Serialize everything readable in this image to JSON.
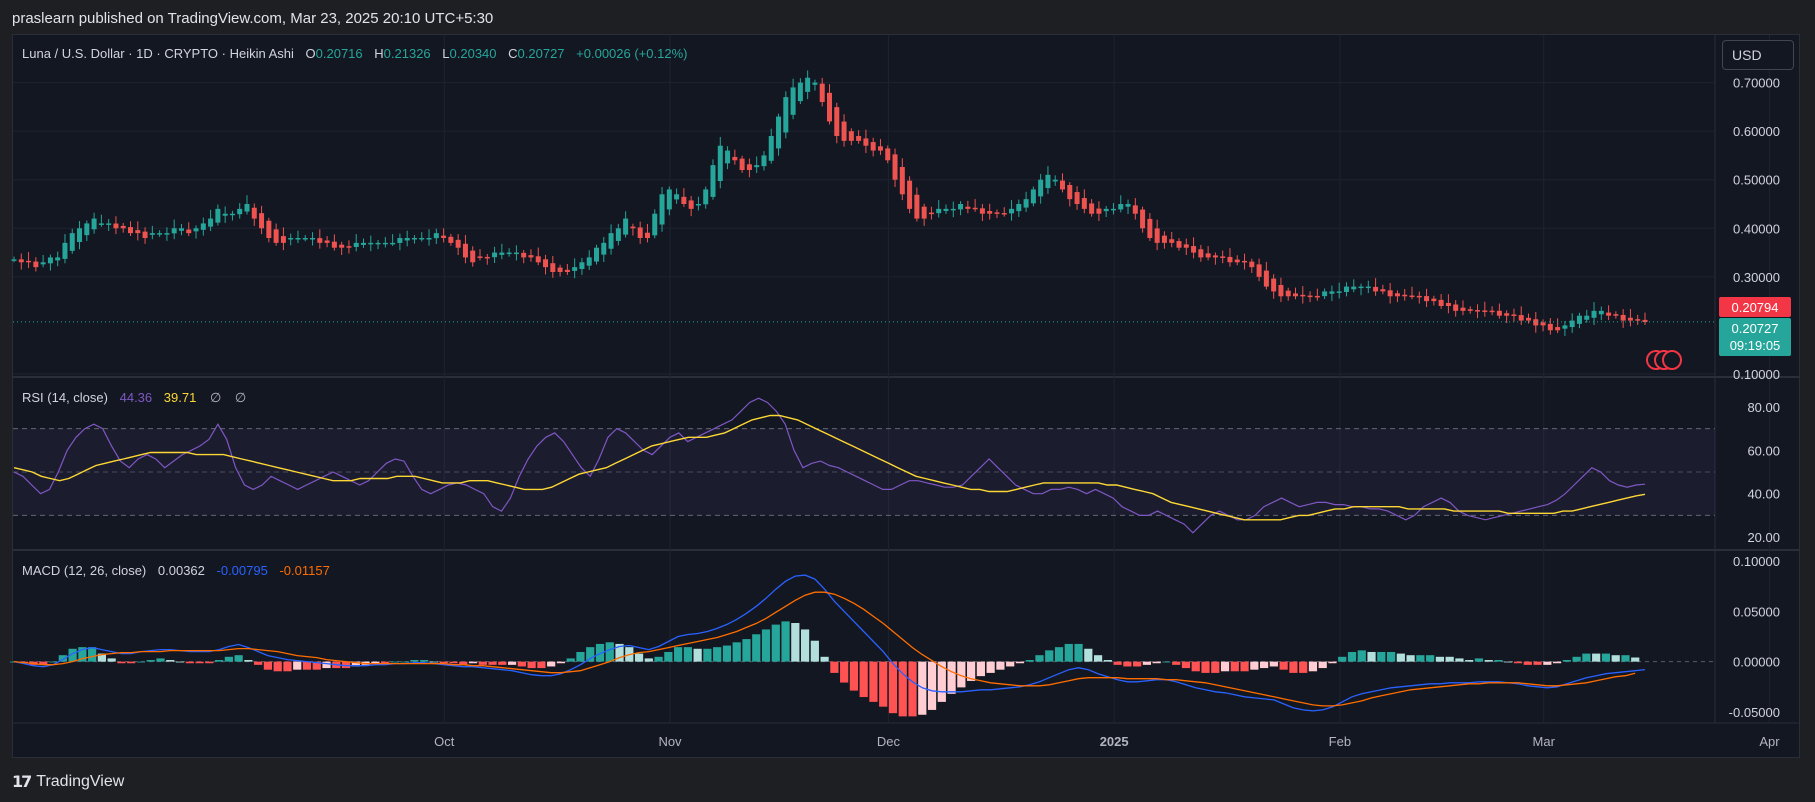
{
  "publisher": {
    "text": "praslearn published on TradingView.com, Mar 23, 2025 20:10 UTC+5:30"
  },
  "branding": {
    "logo_mark": "17",
    "name": "TradingView"
  },
  "symbol": {
    "title": "Luna / U.S. Dollar · 1D · CRYPTO · Heikin Ashi",
    "o_label": "O",
    "o": "0.20716",
    "h_label": "H",
    "h": "0.21326",
    "l_label": "L",
    "l": "0.20340",
    "c_label": "C",
    "c": "0.20727",
    "change": "+0.00026 (+0.12%)"
  },
  "currency_button": "USD",
  "colors": {
    "background": "#131722",
    "up": "#26a69a",
    "down": "#ef5350",
    "rsi": "#7e57c2",
    "rsi_ma": "#fdd835",
    "macd": "#2962ff",
    "signal": "#ff6d00",
    "hist_up_strong": "#26a69a",
    "hist_up_weak": "#b2dfdb",
    "hist_down_strong": "#ff5252",
    "hist_down_weak": "#ffcdd2"
  },
  "chart_data": [
    {
      "type": "candlestick",
      "style": "Heikin Ashi",
      "x_axis": {
        "labels": [
          "Oct",
          "Nov",
          "Dec",
          "2025",
          "Feb",
          "Mar",
          "Apr"
        ],
        "label_days": [
          33,
          64,
          94,
          125,
          156,
          184,
          215
        ]
      },
      "y_axis": {
        "labels": [
          "0.70000",
          "0.60000",
          "0.50000",
          "0.40000",
          "0.30000",
          "0.10000"
        ],
        "range": [
          0.1,
          0.73
        ]
      },
      "price_labels": [
        {
          "value": 0.20794,
          "text": "0.20794",
          "color": "#f23645"
        },
        {
          "value": 0.20727,
          "text": "0.20727",
          "sub": "09:19:05",
          "color": "#26a69a"
        }
      ],
      "grid": true,
      "close_values": [
        0.336,
        0.33,
        0.33,
        0.32,
        0.33,
        0.34,
        0.34,
        0.37,
        0.39,
        0.4,
        0.41,
        0.42,
        0.41,
        0.41,
        0.4,
        0.4,
        0.39,
        0.39,
        0.38,
        0.39,
        0.39,
        0.39,
        0.4,
        0.4,
        0.39,
        0.4,
        0.41,
        0.42,
        0.44,
        0.43,
        0.43,
        0.44,
        0.45,
        0.42,
        0.4,
        0.38,
        0.37,
        0.37,
        0.38,
        0.38,
        0.38,
        0.38,
        0.37,
        0.37,
        0.36,
        0.36,
        0.36,
        0.37,
        0.37,
        0.37,
        0.37,
        0.37,
        0.37,
        0.38,
        0.38,
        0.38,
        0.38,
        0.38,
        0.39,
        0.38,
        0.37,
        0.36,
        0.34,
        0.33,
        0.34,
        0.34,
        0.35,
        0.35,
        0.35,
        0.35,
        0.34,
        0.34,
        0.33,
        0.32,
        0.31,
        0.31,
        0.31,
        0.32,
        0.33,
        0.34,
        0.36,
        0.37,
        0.39,
        0.4,
        0.42,
        0.4,
        0.38,
        0.38,
        0.43,
        0.47,
        0.48,
        0.47,
        0.45,
        0.44,
        0.45,
        0.48,
        0.53,
        0.57,
        0.56,
        0.54,
        0.52,
        0.52,
        0.53,
        0.55,
        0.59,
        0.63,
        0.67,
        0.69,
        0.7,
        0.71,
        0.7,
        0.66,
        0.62,
        0.59,
        0.58,
        0.58,
        0.58,
        0.57,
        0.56,
        0.56,
        0.54,
        0.5,
        0.47,
        0.44,
        0.42,
        0.42,
        0.43,
        0.44,
        0.44,
        0.44,
        0.45,
        0.44,
        0.44,
        0.43,
        0.43,
        0.43,
        0.43,
        0.44,
        0.45,
        0.46,
        0.48,
        0.5,
        0.51,
        0.5,
        0.48,
        0.46,
        0.45,
        0.44,
        0.43,
        0.43,
        0.44,
        0.44,
        0.45,
        0.45,
        0.43,
        0.4,
        0.38,
        0.37,
        0.37,
        0.37,
        0.36,
        0.36,
        0.35,
        0.34,
        0.34,
        0.34,
        0.34,
        0.33,
        0.33,
        0.33,
        0.32,
        0.3,
        0.28,
        0.27,
        0.26,
        0.26,
        0.26,
        0.26,
        0.26,
        0.26,
        0.27,
        0.27,
        0.27,
        0.28,
        0.28,
        0.28,
        0.28,
        0.27,
        0.27,
        0.26,
        0.26,
        0.26,
        0.26,
        0.26,
        0.25,
        0.25,
        0.24,
        0.24,
        0.23,
        0.23,
        0.23,
        0.23,
        0.23,
        0.23,
        0.22,
        0.22,
        0.22,
        0.21,
        0.21,
        0.2,
        0.2,
        0.19,
        0.19,
        0.2,
        0.21,
        0.22,
        0.22,
        0.23,
        0.23,
        0.22,
        0.22,
        0.21,
        0.21,
        0.21,
        0.207
      ]
    },
    {
      "type": "line",
      "name": "RSI",
      "legend": {
        "title": "RSI (14, close)",
        "rsi": "44.36",
        "ma": "39.71",
        "sym1": "∅",
        "sym2": "∅"
      },
      "y_axis": {
        "labels": [
          "80.00",
          "60.00",
          "40.00",
          "20.00"
        ],
        "range": [
          15,
          85
        ]
      },
      "bands": {
        "upper": 70,
        "middle": 50,
        "lower": 30
      },
      "series": [
        {
          "name": "RSI",
          "values": [
            50,
            48,
            44,
            40,
            42,
            50,
            60,
            66,
            70,
            72,
            70,
            62,
            55,
            52,
            56,
            58,
            56,
            52,
            55,
            58,
            60,
            62,
            65,
            72,
            65,
            52,
            44,
            42,
            44,
            48,
            46,
            44,
            42,
            44,
            46,
            48,
            50,
            48,
            46,
            44,
            46,
            50,
            54,
            56,
            55,
            48,
            42,
            40,
            42,
            44,
            45,
            44,
            42,
            40,
            34,
            32,
            38,
            48,
            56,
            62,
            66,
            68,
            64,
            58,
            52,
            48,
            56,
            66,
            70,
            68,
            64,
            60,
            58,
            62,
            66,
            68,
            64,
            66,
            68,
            70,
            72,
            74,
            78,
            82,
            84,
            82,
            78,
            72,
            60,
            52,
            54,
            55,
            53,
            52,
            50,
            48,
            46,
            44,
            42,
            42,
            44,
            46,
            46,
            45,
            44,
            43,
            43,
            44,
            48,
            52,
            56,
            52,
            48,
            44,
            42,
            40,
            40,
            42,
            42,
            43,
            42,
            40,
            42,
            40,
            38,
            34,
            32,
            30,
            30,
            32,
            30,
            28,
            26,
            22,
            26,
            30,
            32,
            30,
            28,
            28,
            30,
            34,
            36,
            38,
            36,
            34,
            35,
            36,
            36,
            35,
            35,
            34,
            34,
            33,
            33,
            32,
            30,
            28,
            30,
            34,
            36,
            38,
            36,
            32,
            30,
            29,
            28,
            29,
            30,
            31,
            32,
            33,
            34,
            35,
            37,
            40,
            44,
            48,
            52,
            50,
            46,
            44,
            43,
            44,
            44.36
          ]
        },
        {
          "name": "MA",
          "values": [
            52,
            51,
            50,
            48,
            47,
            46,
            47,
            49,
            51,
            53,
            54,
            55,
            56,
            57,
            58,
            59,
            59,
            59,
            59,
            59,
            58,
            58,
            58,
            58,
            57,
            56,
            55,
            54,
            53,
            52,
            51,
            50,
            49,
            48,
            47,
            46,
            46,
            46,
            47,
            47,
            47,
            47,
            48,
            48,
            48,
            47,
            46,
            45,
            45,
            45,
            46,
            46,
            46,
            45,
            44,
            43,
            42,
            42,
            42,
            43,
            45,
            47,
            49,
            50,
            51,
            52,
            54,
            56,
            58,
            60,
            62,
            63,
            64,
            65,
            66,
            66,
            66,
            67,
            68,
            70,
            72,
            74,
            75,
            76,
            76,
            75,
            74,
            72,
            70,
            68,
            66,
            64,
            62,
            60,
            58,
            56,
            54,
            52,
            50,
            48,
            47,
            46,
            45,
            44,
            43,
            42,
            42,
            41,
            41,
            41,
            42,
            43,
            44,
            45,
            45,
            45,
            45,
            45,
            45,
            45,
            44,
            44,
            43,
            42,
            41,
            40,
            38,
            36,
            35,
            34,
            33,
            32,
            31,
            30,
            29,
            28,
            28,
            28,
            28,
            28,
            29,
            30,
            30,
            31,
            32,
            33,
            33,
            34,
            34,
            34,
            34,
            34,
            34,
            33,
            33,
            33,
            33,
            33,
            32,
            32,
            32,
            32,
            32,
            32,
            31,
            31,
            31,
            31,
            31,
            31,
            32,
            32,
            33,
            34,
            35,
            36,
            37,
            38,
            39,
            39.71
          ]
        }
      ]
    },
    {
      "type": "bar",
      "name": "MACD",
      "legend": {
        "title": "MACD (12, 26, close)",
        "hist": "0.00362",
        "macd": "-0.00795",
        "signal": "-0.01157"
      },
      "y_axis": {
        "labels": [
          "0.10000",
          "0.05000",
          "0.00000",
          "-0.05000"
        ],
        "range": [
          -0.06,
          0.105
        ]
      },
      "series": [
        {
          "name": "MACD",
          "values": [
            0,
            -0.002,
            -0.004,
            -0.005,
            -0.003,
            0.002,
            0.008,
            0.012,
            0.014,
            0.012,
            0.01,
            0.008,
            0.008,
            0.01,
            0.011,
            0.012,
            0.012,
            0.011,
            0.01,
            0.01,
            0.01,
            0.012,
            0.015,
            0.017,
            0.014,
            0.01,
            0.006,
            0.004,
            0.002,
            0.001,
            0,
            -0.001,
            -0.002,
            -0.003,
            -0.004,
            -0.004,
            -0.004,
            -0.003,
            -0.003,
            -0.002,
            -0.002,
            -0.001,
            -0.001,
            -0.002,
            -0.003,
            -0.004,
            -0.005,
            -0.005,
            -0.006,
            -0.007,
            -0.008,
            -0.009,
            -0.011,
            -0.013,
            -0.014,
            -0.014,
            -0.012,
            -0.008,
            -0.003,
            0.003,
            0.008,
            0.012,
            0.015,
            0.016,
            0.014,
            0.012,
            0.015,
            0.02,
            0.025,
            0.027,
            0.028,
            0.03,
            0.033,
            0.037,
            0.042,
            0.048,
            0.055,
            0.063,
            0.072,
            0.08,
            0.085,
            0.086,
            0.082,
            0.072,
            0.06,
            0.05,
            0.04,
            0.03,
            0.02,
            0.01,
            -0.002,
            -0.012,
            -0.02,
            -0.026,
            -0.029,
            -0.03,
            -0.03,
            -0.03,
            -0.029,
            -0.028,
            -0.028,
            -0.027,
            -0.026,
            -0.025,
            -0.023,
            -0.02,
            -0.016,
            -0.012,
            -0.008,
            -0.006,
            -0.008,
            -0.012,
            -0.015,
            -0.018,
            -0.02,
            -0.02,
            -0.019,
            -0.018,
            -0.018,
            -0.02,
            -0.023,
            -0.026,
            -0.028,
            -0.03,
            -0.031,
            -0.033,
            -0.035,
            -0.036,
            -0.037,
            -0.038,
            -0.042,
            -0.046,
            -0.048,
            -0.049,
            -0.048,
            -0.045,
            -0.04,
            -0.035,
            -0.032,
            -0.03,
            -0.028,
            -0.026,
            -0.025,
            -0.024,
            -0.023,
            -0.022,
            -0.022,
            -0.021,
            -0.021,
            -0.021,
            -0.02,
            -0.02,
            -0.02,
            -0.021,
            -0.022,
            -0.024,
            -0.025,
            -0.026,
            -0.025,
            -0.022,
            -0.019,
            -0.016,
            -0.014,
            -0.012,
            -0.011,
            -0.01,
            -0.009,
            -0.00795
          ]
        },
        {
          "name": "Signal",
          "values": [
            0,
            -0.001,
            -0.002,
            -0.003,
            -0.003,
            -0.002,
            0,
            0.003,
            0.005,
            0.007,
            0.008,
            0.009,
            0.009,
            0.01,
            0.01,
            0.01,
            0.011,
            0.011,
            0.011,
            0.011,
            0.011,
            0.011,
            0.012,
            0.013,
            0.013,
            0.012,
            0.011,
            0.01,
            0.008,
            0.006,
            0.005,
            0.004,
            0.002,
            0.001,
            0,
            -0.001,
            -0.002,
            -0.002,
            -0.002,
            -0.002,
            -0.002,
            -0.002,
            -0.002,
            -0.002,
            -0.002,
            -0.003,
            -0.003,
            -0.004,
            -0.004,
            -0.005,
            -0.006,
            -0.007,
            -0.008,
            -0.009,
            -0.01,
            -0.011,
            -0.011,
            -0.01,
            -0.009,
            -0.006,
            -0.003,
            0,
            0.004,
            0.007,
            0.009,
            0.01,
            0.012,
            0.014,
            0.016,
            0.018,
            0.02,
            0.022,
            0.024,
            0.027,
            0.03,
            0.034,
            0.038,
            0.043,
            0.049,
            0.055,
            0.061,
            0.066,
            0.069,
            0.069,
            0.067,
            0.063,
            0.058,
            0.052,
            0.045,
            0.038,
            0.03,
            0.022,
            0.014,
            0.007,
            0.001,
            -0.005,
            -0.01,
            -0.014,
            -0.017,
            -0.019,
            -0.021,
            -0.022,
            -0.023,
            -0.024,
            -0.024,
            -0.024,
            -0.023,
            -0.021,
            -0.019,
            -0.017,
            -0.016,
            -0.016,
            -0.016,
            -0.016,
            -0.017,
            -0.017,
            -0.017,
            -0.017,
            -0.018,
            -0.018,
            -0.019,
            -0.02,
            -0.021,
            -0.023,
            -0.025,
            -0.027,
            -0.029,
            -0.031,
            -0.033,
            -0.035,
            -0.037,
            -0.039,
            -0.041,
            -0.043,
            -0.044,
            -0.044,
            -0.043,
            -0.041,
            -0.039,
            -0.036,
            -0.034,
            -0.032,
            -0.03,
            -0.028,
            -0.027,
            -0.026,
            -0.025,
            -0.024,
            -0.023,
            -0.022,
            -0.022,
            -0.021,
            -0.021,
            -0.021,
            -0.021,
            -0.022,
            -0.023,
            -0.024,
            -0.024,
            -0.023,
            -0.022,
            -0.021,
            -0.019,
            -0.017,
            -0.015,
            -0.014,
            -0.01157
          ]
        }
      ]
    }
  ]
}
